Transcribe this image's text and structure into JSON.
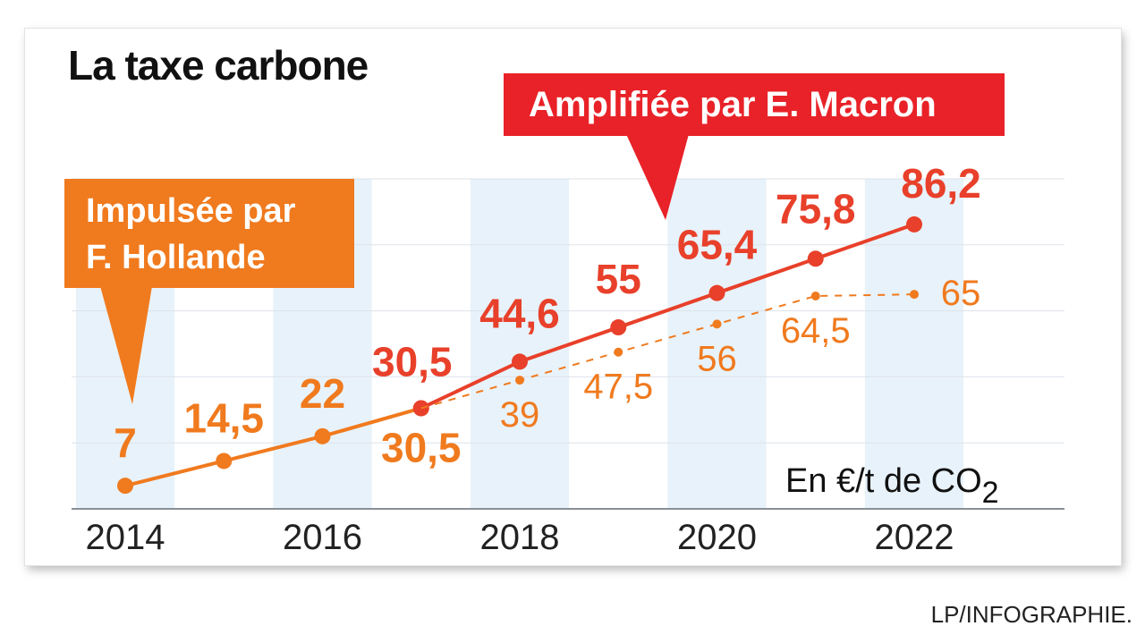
{
  "title": "La taxe carbone",
  "callouts": {
    "hollande_line1": "Impulsée par",
    "hollande_line2": "F. Hollande",
    "macron": "Amplifiée par E. Macron"
  },
  "unit_label": "En €/t de CO",
  "unit_sub": "2",
  "credit": "LP/INFOGRAPHIE.",
  "colors": {
    "orange": "#F07A1E",
    "red": "#E8402A",
    "callout_red": "#E82228",
    "band": "#E8F2FA"
  },
  "chart_data": {
    "type": "line",
    "title": "La taxe carbone",
    "xlabel": "",
    "ylabel": "En €/t de CO2",
    "x_tick_labels": [
      "2014",
      "2016",
      "2018",
      "2020",
      "2022"
    ],
    "ylim": [
      0,
      100
    ],
    "grid": true,
    "series": [
      {
        "name": "Impulsée par F. Hollande",
        "style": "solid",
        "color": "#F07A1E",
        "x": [
          2014,
          2015,
          2016,
          2017
        ],
        "y": [
          7,
          14.5,
          22,
          30.5
        ],
        "labels": [
          "7",
          "14,5",
          "22",
          "30,5"
        ]
      },
      {
        "name": "Amplifiée par E. Macron",
        "style": "solid",
        "color": "#E8402A",
        "x": [
          2017,
          2018,
          2019,
          2020,
          2021,
          2022
        ],
        "y": [
          30.5,
          44.6,
          55,
          65.4,
          75.8,
          86.2
        ],
        "labels": [
          "30,5",
          "44,6",
          "55",
          "65,4",
          "75,8",
          "86,2"
        ]
      },
      {
        "name": "",
        "style": "dashed",
        "color": "#F07A1E",
        "x": [
          2017,
          2018,
          2019,
          2020,
          2021,
          2022
        ],
        "y": [
          30.5,
          39,
          47.5,
          56,
          64.5,
          65
        ],
        "labels": [
          "",
          "39",
          "47,5",
          "56",
          "64,5",
          "65"
        ]
      }
    ]
  }
}
